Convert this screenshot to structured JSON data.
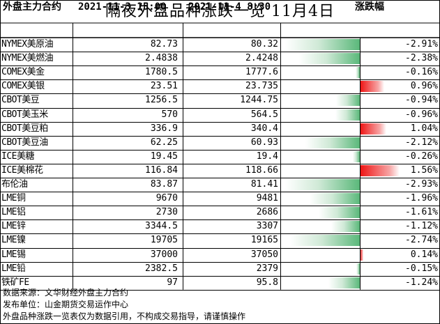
{
  "title": "隔夜外盘品种涨跌一览  11月4日",
  "columns": [
    "外盘主力合约",
    "2021-11-3 15:00",
    "2021-11-4 8:30",
    "涨跌幅"
  ],
  "chart_data": {
    "type": "table",
    "title": "隔夜外盘品种涨跌一览  11月4日",
    "columns": [
      "外盘主力合约",
      "2021-11-3 15:00",
      "2021-11-4 8:30",
      "涨跌幅"
    ],
    "rows": [
      {
        "name": "NYMEX美原油",
        "v1": "82.73",
        "v2": "80.32",
        "pct": "-2.91%",
        "change": -2.91
      },
      {
        "name": "NYMEX美燃油",
        "v1": "2.4838",
        "v2": "2.4248",
        "pct": "-2.38%",
        "change": -2.38
      },
      {
        "name": "COMEX美金",
        "v1": "1780.5",
        "v2": "1777.6",
        "pct": "-0.16%",
        "change": -0.16
      },
      {
        "name": "COMEX美银",
        "v1": "23.51",
        "v2": "23.735",
        "pct": "0.96%",
        "change": 0.96
      },
      {
        "name": "CBOT美豆",
        "v1": "1256.5",
        "v2": "1244.75",
        "pct": "-0.94%",
        "change": -0.94
      },
      {
        "name": "CBOT美玉米",
        "v1": "570",
        "v2": "564.5",
        "pct": "-0.96%",
        "change": -0.96
      },
      {
        "name": "CBOT美豆粕",
        "v1": "336.9",
        "v2": "340.4",
        "pct": "1.04%",
        "change": 1.04
      },
      {
        "name": "CBOT美豆油",
        "v1": "62.25",
        "v2": "60.93",
        "pct": "-2.12%",
        "change": -2.12
      },
      {
        "name": "ICE美糖",
        "v1": "19.45",
        "v2": "19.4",
        "pct": "-0.26%",
        "change": -0.26
      },
      {
        "name": "ICE美棉花",
        "v1": "116.84",
        "v2": "118.66",
        "pct": "1.56%",
        "change": 1.56
      },
      {
        "name": "布伦油",
        "v1": "83.87",
        "v2": "81.41",
        "pct": "-2.93%",
        "change": -2.93
      },
      {
        "name": "LME铜",
        "v1": "9670",
        "v2": "9481",
        "pct": "-1.96%",
        "change": -1.96
      },
      {
        "name": "LME铝",
        "v1": "2730",
        "v2": "2686",
        "pct": "-1.61%",
        "change": -1.61
      },
      {
        "name": "LME锌",
        "v1": "3344.5",
        "v2": "3307",
        "pct": "-1.12%",
        "change": -1.12
      },
      {
        "name": "LME镍",
        "v1": "19705",
        "v2": "19165",
        "pct": "-2.74%",
        "change": -2.74
      },
      {
        "name": "LME锡",
        "v1": "37000",
        "v2": "37050",
        "pct": "0.14%",
        "change": 0.14
      },
      {
        "name": "LME铅",
        "v1": "2382.5",
        "v2": "2379",
        "pct": "-0.15%",
        "change": -0.15
      },
      {
        "name": "铁矿FE",
        "v1": "97",
        "v2": "95.8",
        "pct": "-1.24%",
        "change": -1.24
      }
    ]
  },
  "footer": [
    "数据来源：文华财经外盘主力合约",
    "发布单位：山金期货交易运作中心",
    "外盘品种涨跌一览表仅为数据引用，不构成交易指导，请谨慎操作"
  ],
  "colors": {
    "negative": "#5ab87a",
    "positive": "#ee1111",
    "grid": "#000000"
  }
}
